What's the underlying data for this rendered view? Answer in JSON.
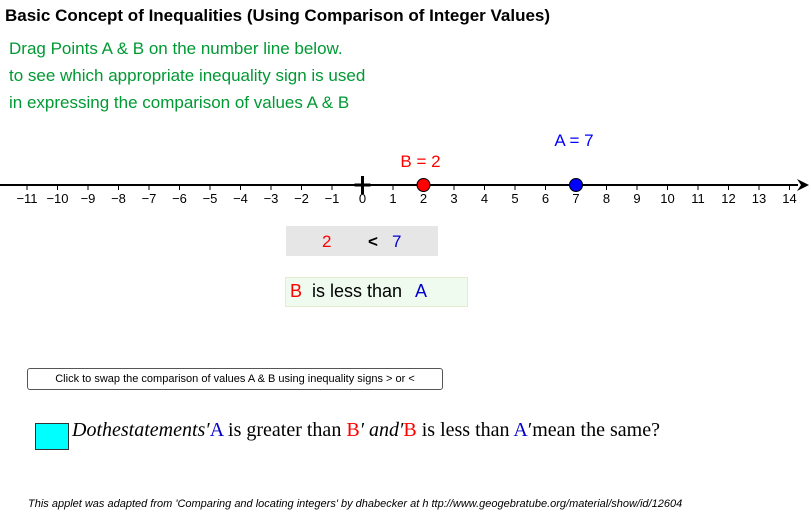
{
  "title": "Basic Concept of Inequalities (Using Comparison of Integer Values)",
  "instructions": [
    "Drag Points A & B on the number line below.",
    "to see which appropriate inequality sign is used",
    "in expressing the comparison of values A & B"
  ],
  "number_line": {
    "min_tick": -11,
    "max_tick": 14,
    "tick_labels": [
      "−11",
      "−10",
      "−9",
      "−8",
      "−7",
      "−6",
      "−5",
      "−4",
      "−3",
      "−2",
      "−1",
      "0",
      "1",
      "2",
      "3",
      "4",
      "5",
      "6",
      "7",
      "8",
      "9",
      "10",
      "11",
      "12",
      "13",
      "14"
    ],
    "point_A": {
      "label": "A = 7",
      "value": 7,
      "color": "#0000ff"
    },
    "point_B": {
      "label": "B = 2",
      "value": 2,
      "color": "#ff0000"
    }
  },
  "comparison": {
    "b_value": "2",
    "sign": "<",
    "a_value": "7"
  },
  "statement": {
    "b": "B",
    "middle": "is less than",
    "a": "A"
  },
  "swap_button_label": "Click to swap the comparison of values A & B using inequality signs >  or <",
  "question": {
    "prefix": "Dothestatements′",
    "a1": "A",
    "mid1": " is greater than ",
    "b1": "B",
    "and": "′ and′",
    "b2": "B",
    "mid2": " is less than ",
    "a2": "A",
    "suffix": "′mean the same?"
  },
  "footer": "This applet was adapted from 'Comparing and locating integers' by dhabecker at h ttp://www.geogebratube.org/material/show/id/12604"
}
